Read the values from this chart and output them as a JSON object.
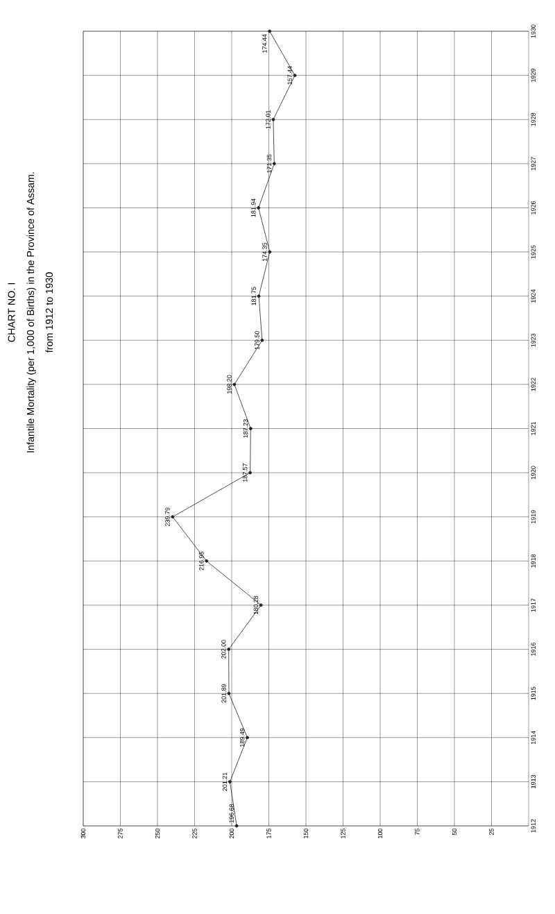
{
  "chart_data": {
    "type": "line",
    "orientation": "horizontal",
    "title": "CHART NO. I",
    "subtitle": "Infantile Mortality (per 1,000 of Births) in the Province of Assam.",
    "annotations": [
      "from 1912 to 1930"
    ],
    "categories": [
      "1930",
      "1929",
      "1928",
      "1927",
      "1926",
      "1925",
      "1924",
      "1923",
      "1922",
      "1921",
      "1920",
      "1919",
      "1918",
      "1917",
      "1916",
      "1915",
      "1914",
      "1913",
      "1912"
    ],
    "values": [
      174.44,
      157.44,
      172.01,
      171.35,
      181.94,
      174.35,
      181.75,
      179.5,
      198.2,
      187.23,
      187.57,
      239.79,
      216.95,
      180.28,
      202.0,
      201.89,
      189.49,
      201.21,
      196.68
    ],
    "value_labels": [
      "174.44",
      "157.44",
      "172.01",
      "171.35",
      "181.94",
      "174.35",
      "181.75",
      "179.50",
      "198.20",
      "187.23",
      "187.57",
      "239.79",
      "216.95",
      "180.28",
      "202.00",
      "201.89",
      "189.49",
      "201.21",
      "196.68"
    ],
    "color": "#222222",
    "marker": "circle",
    "line_style": "solid",
    "grid": true,
    "xlim": [
      300,
      0
    ],
    "xticks": [
      300,
      275,
      250,
      225,
      200,
      175,
      150,
      125,
      100,
      75,
      50,
      25
    ]
  }
}
